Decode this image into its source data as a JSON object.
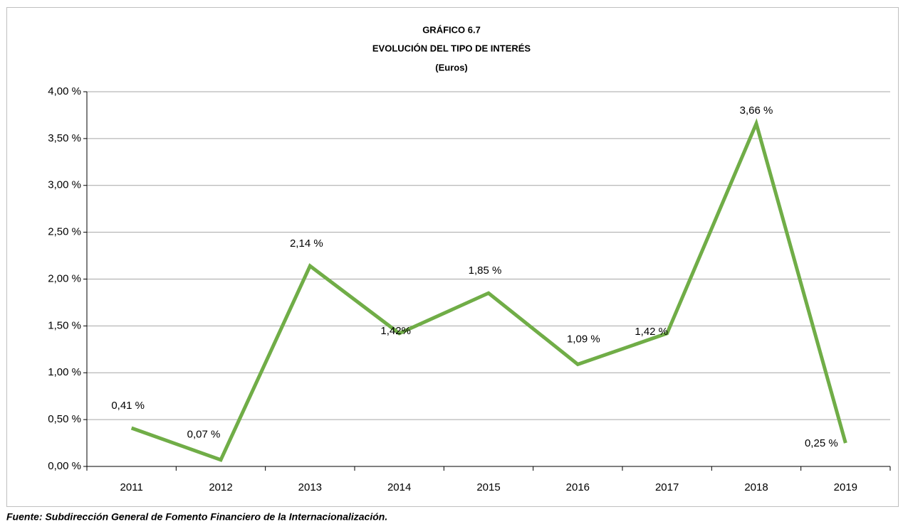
{
  "chart_data": {
    "type": "line",
    "title": "GRÁFICO 6.7",
    "subtitle": "EVOLUCIÓN DEL TIPO DE INTERÉS",
    "unit_note": "(Euros)",
    "source": "Fuente: Subdirección General de Fomento Financiero de la Internacionalización.",
    "categories": [
      "2011",
      "2012",
      "2013",
      "2014",
      "2015",
      "2016",
      "2017",
      "2018",
      "2019"
    ],
    "values": [
      0.41,
      0.07,
      2.14,
      1.42,
      1.85,
      1.09,
      1.42,
      3.66,
      0.25
    ],
    "value_labels": [
      "0,41 %",
      "0,07 %",
      "2,14 %",
      "1,42%",
      "1,85 %",
      "1,09 %",
      "1,42 %",
      "3,66 %",
      "0,25 %"
    ],
    "color": "#70ad47",
    "ylim": [
      0,
      4
    ],
    "yticks": [
      {
        "value": 0,
        "label": "0,00 %"
      },
      {
        "value": 0.5,
        "label": "0,50 %"
      },
      {
        "value": 1,
        "label": "1,00 %"
      },
      {
        "value": 1.5,
        "label": "1,50 %"
      },
      {
        "value": 2,
        "label": "2,00 %"
      },
      {
        "value": 2.5,
        "label": "2,50 %"
      },
      {
        "value": 3,
        "label": "3,00 %"
      },
      {
        "value": 3.5,
        "label": "3,50 %"
      },
      {
        "value": 4,
        "label": "4,00 %"
      }
    ],
    "grid": true
  }
}
